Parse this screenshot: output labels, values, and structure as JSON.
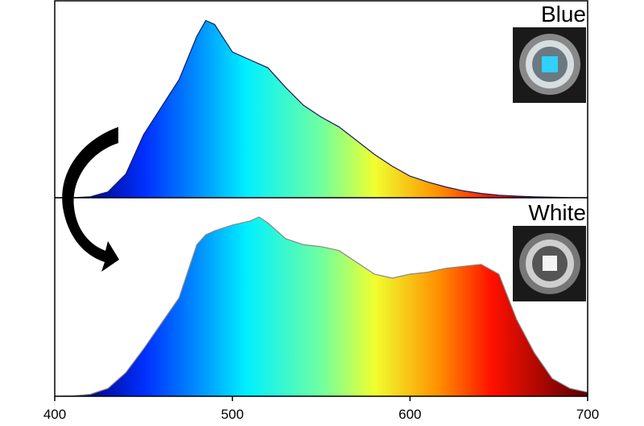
{
  "chart_data": {
    "type": "area",
    "x": [
      400,
      410,
      420,
      430,
      440,
      450,
      460,
      470,
      480,
      485,
      490,
      500,
      510,
      515,
      520,
      530,
      540,
      550,
      560,
      570,
      580,
      590,
      600,
      610,
      620,
      630,
      640,
      650,
      660,
      670,
      680,
      690,
      700
    ],
    "series": [
      {
        "name": "Blue",
        "values": [
          0,
          0,
          0.005,
          0.03,
          0.12,
          0.32,
          0.46,
          0.6,
          0.82,
          0.9,
          0.88,
          0.74,
          0.7,
          0.68,
          0.66,
          0.56,
          0.47,
          0.41,
          0.36,
          0.29,
          0.22,
          0.16,
          0.11,
          0.08,
          0.055,
          0.035,
          0.022,
          0.013,
          0.008,
          0.005,
          0.003,
          0.001,
          0
        ]
      },
      {
        "name": "White",
        "values": [
          0,
          0.002,
          0.01,
          0.04,
          0.12,
          0.24,
          0.37,
          0.5,
          0.77,
          0.82,
          0.84,
          0.87,
          0.89,
          0.91,
          0.88,
          0.8,
          0.77,
          0.76,
          0.74,
          0.68,
          0.62,
          0.6,
          0.62,
          0.63,
          0.65,
          0.66,
          0.67,
          0.62,
          0.39,
          0.22,
          0.09,
          0.04,
          0.02
        ]
      }
    ],
    "xlim": [
      400,
      700
    ],
    "xticks": [
      400,
      500,
      600,
      700
    ],
    "ylim": [
      0,
      1
    ]
  }
}
